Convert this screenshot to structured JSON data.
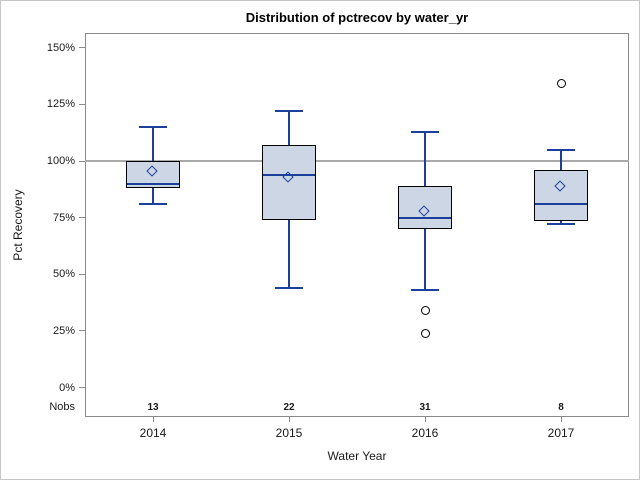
{
  "title": "Distribution of pctrecov by water_yr",
  "colors": {
    "box_fill": "#ccd6e4",
    "box_blue": "#1b3f9c",
    "frame_gray": "#8a8a8a",
    "reference_gray": "#a9a9a9",
    "outer_border": "#c6c6c6"
  },
  "chart_data": {
    "type": "box",
    "title": "Distribution of pctrecov by water_yr",
    "xlabel": "Water Year",
    "ylabel": "Pct Recovery",
    "categories": [
      "2014",
      "2015",
      "2016",
      "2017"
    ],
    "nobs_label": "Nobs",
    "nobs": [
      13,
      22,
      31,
      8
    ],
    "yticks": [
      0,
      25,
      50,
      75,
      100,
      125,
      150
    ],
    "ytick_suffix": "%",
    "ylim": [
      -13,
      156.5
    ],
    "reference_line": 100,
    "grid": false,
    "series": [
      {
        "category": "2014",
        "n": 13,
        "whisker_low": 81,
        "q1": 88,
        "median": 90,
        "q3": 100,
        "whisker_high": 115,
        "mean": 95,
        "outliers": []
      },
      {
        "category": "2015",
        "n": 22,
        "whisker_low": 44,
        "q1": 74,
        "median": 94,
        "q3": 107,
        "whisker_high": 122,
        "mean": 92.5,
        "outliers": []
      },
      {
        "category": "2016",
        "n": 31,
        "whisker_low": 43,
        "q1": 70,
        "median": 75,
        "q3": 89,
        "whisker_high": 113,
        "mean": 77.5,
        "outliers": [
          34,
          24
        ]
      },
      {
        "category": "2017",
        "n": 8,
        "whisker_low": 72,
        "q1": 73.5,
        "median": 81,
        "q3": 96,
        "whisker_high": 105,
        "mean": 88.5,
        "outliers": [
          134
        ]
      }
    ]
  }
}
